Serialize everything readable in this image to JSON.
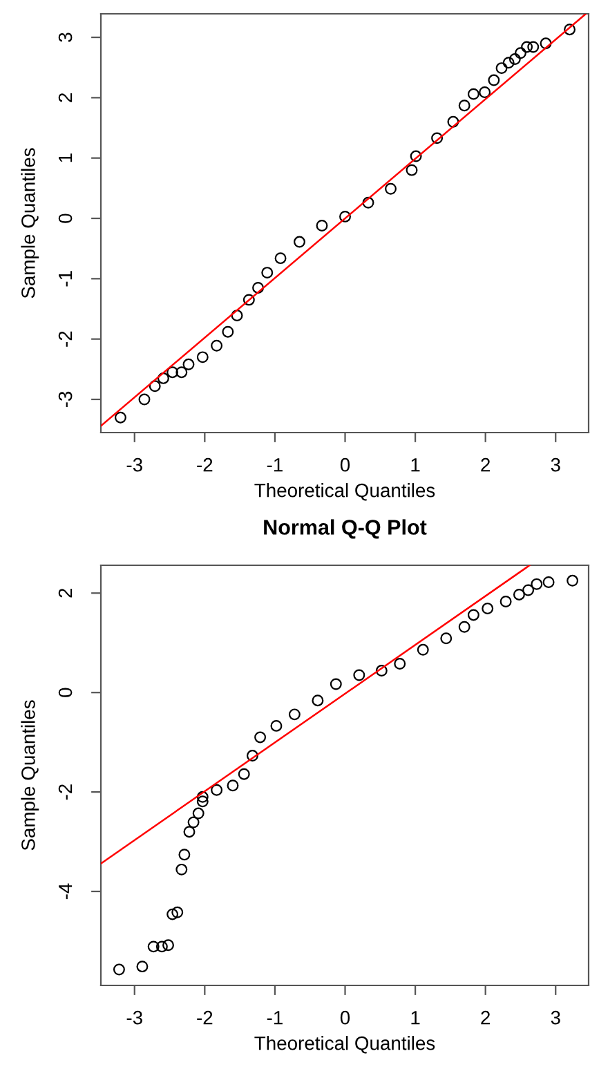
{
  "chart_data": [
    {
      "type": "scatter",
      "xlabel": "Theoretical Quantiles",
      "ylabel": "Sample Quantiles",
      "xlim": [
        -3.48,
        3.47
      ],
      "ylim": [
        -3.55,
        3.39
      ],
      "xticks": [
        -3,
        -2,
        -1,
        0,
        1,
        2,
        3
      ],
      "yticks": [
        -3,
        -2,
        -1,
        0,
        1,
        2,
        3
      ],
      "series": [
        {
          "color": "#000000",
          "marker": "circle",
          "x": [
            -3.2,
            -2.86,
            -2.71,
            -2.59,
            -2.46,
            -2.33,
            -2.23,
            -2.03,
            -1.83,
            -1.67,
            -1.54,
            -1.37,
            -1.24,
            -1.11,
            -0.92,
            -0.65,
            -0.33,
            0,
            0.33,
            0.65,
            0.95,
            1.01,
            1.31,
            1.54,
            1.7,
            1.83,
            1.99,
            2.12,
            2.23,
            2.33,
            2.42,
            2.5,
            2.59,
            2.68,
            2.86,
            3.2
          ],
          "values": [
            -3.3,
            -3.0,
            -2.78,
            -2.65,
            -2.55,
            -2.55,
            -2.42,
            -2.3,
            -2.11,
            -1.88,
            -1.61,
            -1.35,
            -1.15,
            -0.9,
            -0.66,
            -0.39,
            -0.12,
            0.03,
            0.26,
            0.49,
            0.8,
            1.03,
            1.33,
            1.6,
            1.87,
            2.06,
            2.09,
            2.29,
            2.49,
            2.58,
            2.64,
            2.74,
            2.84,
            2.84,
            2.9,
            3.13
          ]
        },
        {
          "type": "line",
          "color": "#ff0000",
          "x": [
            -3.48,
            3.43
          ],
          "values": [
            -3.44,
            3.39
          ]
        }
      ]
    },
    {
      "type": "scatter",
      "title": "Normal Q-Q Plot",
      "xlabel": "Theoretical Quantiles",
      "ylabel": "Sample Quantiles",
      "xlim": [
        -3.48,
        3.47
      ],
      "ylim": [
        -5.89,
        2.56
      ],
      "xticks": [
        -3,
        -2,
        -1,
        0,
        1,
        2,
        3
      ],
      "yticks": [
        -4,
        -2,
        0,
        2
      ],
      "series": [
        {
          "color": "#000000",
          "marker": "circle",
          "x": [
            -3.22,
            -2.89,
            -2.73,
            -2.61,
            -2.52,
            -2.46,
            -2.39,
            -2.33,
            -2.29,
            -2.22,
            -2.16,
            -2.09,
            -2.03,
            -2.03,
            -1.83,
            -1.6,
            -1.44,
            -1.32,
            -1.21,
            -0.98,
            -0.72,
            -0.39,
            -0.13,
            0.2,
            0.52,
            0.78,
            1.11,
            1.44,
            1.7,
            1.83,
            2.03,
            2.29,
            2.48,
            2.61,
            2.73,
            2.9,
            3.24
          ],
          "values": [
            -5.57,
            -5.51,
            -5.11,
            -5.11,
            -5.08,
            -4.46,
            -4.42,
            -3.56,
            -3.26,
            -2.8,
            -2.61,
            -2.43,
            -2.19,
            -2.1,
            -1.96,
            -1.87,
            -1.64,
            -1.27,
            -0.9,
            -0.67,
            -0.44,
            -0.16,
            0.17,
            0.35,
            0.44,
            0.58,
            0.86,
            1.09,
            1.32,
            1.56,
            1.69,
            1.83,
            1.97,
            2.06,
            2.18,
            2.22,
            2.25
          ]
        },
        {
          "type": "line",
          "color": "#ff0000",
          "x": [
            -3.48,
            2.63
          ],
          "values": [
            -3.44,
            2.56
          ]
        }
      ]
    }
  ]
}
